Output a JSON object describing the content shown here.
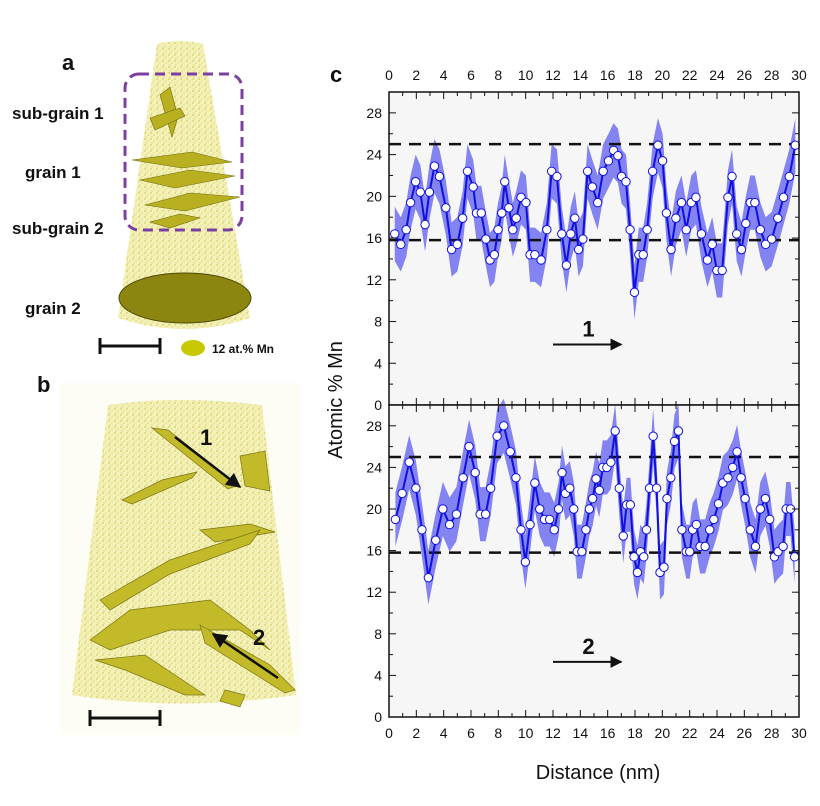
{
  "panel_a": {
    "letter": "a",
    "labels": [
      "sub-grain 1",
      "grain 1",
      "sub-grain 2",
      "grain 2"
    ],
    "legend": "12 at.% Mn",
    "colors": {
      "solute": "#c8c800",
      "box": "#7b3fa0"
    }
  },
  "panel_b": {
    "letter": "b",
    "arrow_labels": [
      "1",
      "2"
    ]
  },
  "panel_c": {
    "letter": "c"
  },
  "chart_data": {
    "type": "line",
    "ylabel": "Atomic % Mn",
    "xlabel": "Distance (nm)",
    "xlim": [
      0,
      30
    ],
    "ylim": [
      0,
      30
    ],
    "xticks": [
      0,
      2,
      4,
      6,
      8,
      10,
      12,
      14,
      16,
      18,
      20,
      22,
      24,
      26,
      28,
      30
    ],
    "yticks": [
      0,
      4,
      8,
      12,
      16,
      20,
      24,
      28
    ],
    "reference_lines": [
      25,
      15.8
    ],
    "colors": {
      "line": "#1010e0",
      "band": "#6f6ff0",
      "marker_fill": "#ffffff"
    },
    "panels": [
      {
        "annotation": "1",
        "x": [
          0.42,
          0.86,
          1.26,
          1.58,
          1.95,
          2.29,
          2.64,
          2.96,
          3.33,
          3.69,
          4.16,
          4.58,
          5.0,
          5.39,
          5.74,
          6.16,
          6.4,
          6.75,
          7.09,
          7.39,
          7.71,
          7.98,
          8.25,
          8.47,
          8.77,
          9.06,
          9.31,
          9.66,
          10.02,
          10.32,
          10.67,
          11.13,
          11.55,
          11.9,
          12.29,
          12.64,
          12.98,
          13.3,
          13.6,
          13.87,
          14.19,
          14.53,
          14.88,
          15.27,
          15.67,
          16.06,
          16.43,
          16.75,
          17.02,
          17.34,
          17.64,
          17.96,
          18.28,
          18.6,
          18.89,
          19.29,
          19.68,
          20.02,
          20.3,
          20.64,
          20.99,
          21.4,
          21.75,
          22.12,
          22.46,
          22.86,
          23.3,
          23.65,
          23.99,
          24.38,
          24.8,
          25.1,
          25.44,
          25.79,
          26.11,
          26.43,
          26.77,
          27.17,
          27.56,
          28.0,
          28.45,
          28.87,
          29.29,
          29.73
        ],
        "y": [
          16.4,
          15.4,
          16.8,
          19.4,
          21.4,
          20.4,
          17.3,
          20.4,
          22.9,
          21.9,
          18.9,
          14.9,
          15.4,
          17.9,
          22.4,
          20.9,
          18.4,
          18.4,
          15.9,
          13.9,
          14.4,
          16.8,
          18.4,
          21.4,
          18.9,
          16.8,
          17.9,
          19.9,
          19.4,
          14.4,
          14.4,
          13.9,
          16.8,
          22.4,
          21.9,
          16.4,
          13.4,
          16.4,
          17.9,
          14.9,
          15.9,
          22.4,
          20.9,
          19.4,
          22.4,
          23.4,
          24.4,
          23.9,
          21.9,
          21.4,
          16.8,
          10.8,
          14.4,
          14.4,
          16.8,
          22.4,
          24.9,
          23.4,
          18.4,
          14.9,
          17.9,
          19.4,
          16.8,
          19.4,
          19.9,
          16.4,
          13.9,
          15.4,
          12.9,
          12.9,
          19.9,
          21.9,
          16.4,
          14.9,
          17.4,
          19.4,
          19.4,
          16.8,
          15.4,
          15.9,
          17.9,
          19.9,
          21.9,
          24.9
        ]
      },
      {
        "annotation": "2",
        "x": [
          0.47,
          0.96,
          1.48,
          1.97,
          2.41,
          2.88,
          3.42,
          3.94,
          4.43,
          4.93,
          5.42,
          5.86,
          6.31,
          6.67,
          7.07,
          7.44,
          7.91,
          8.4,
          8.87,
          9.29,
          9.66,
          9.98,
          10.32,
          10.67,
          11.03,
          11.38,
          11.75,
          12.09,
          12.41,
          12.66,
          12.91,
          13.23,
          13.52,
          13.77,
          14.11,
          14.41,
          14.66,
          14.9,
          15.15,
          15.39,
          15.64,
          15.94,
          16.23,
          16.55,
          16.85,
          17.14,
          17.39,
          17.66,
          17.93,
          18.18,
          18.4,
          18.64,
          18.84,
          19.06,
          19.33,
          19.58,
          19.83,
          20.12,
          20.34,
          20.62,
          20.89,
          21.18,
          21.43,
          21.75,
          22.0,
          22.22,
          22.49,
          22.76,
          23.13,
          23.47,
          23.77,
          24.11,
          24.43,
          24.8,
          25.15,
          25.47,
          25.76,
          26.06,
          26.43,
          26.82,
          27.17,
          27.54,
          27.86,
          28.2,
          28.47,
          28.84,
          29.06,
          29.38,
          29.68
        ],
        "y": [
          19.0,
          21.5,
          24.5,
          22.0,
          18.0,
          13.4,
          17.0,
          20.0,
          18.5,
          19.5,
          23.0,
          26.0,
          23.5,
          19.5,
          19.5,
          22.0,
          27.0,
          28.0,
          25.5,
          23.0,
          18.0,
          14.9,
          18.5,
          22.5,
          20.0,
          19.0,
          19.0,
          18.0,
          20.0,
          23.5,
          21.5,
          22.0,
          20.0,
          15.9,
          15.9,
          18.0,
          20.0,
          21.0,
          22.9,
          21.8,
          24.0,
          24.0,
          24.5,
          27.5,
          22.0,
          17.4,
          20.4,
          20.4,
          15.4,
          13.9,
          15.9,
          15.4,
          18.0,
          22.0,
          27.0,
          22.0,
          13.9,
          14.4,
          21.0,
          23.0,
          26.5,
          27.5,
          18.0,
          15.9,
          15.9,
          18.0,
          18.5,
          16.4,
          16.4,
          18.0,
          19.0,
          20.5,
          22.5,
          23.0,
          24.0,
          25.5,
          23.0,
          21.0,
          18.0,
          16.4,
          20.0,
          21.0,
          19.0,
          15.4,
          15.9,
          16.4,
          20.0,
          20.0,
          15.4
        ]
      }
    ]
  }
}
